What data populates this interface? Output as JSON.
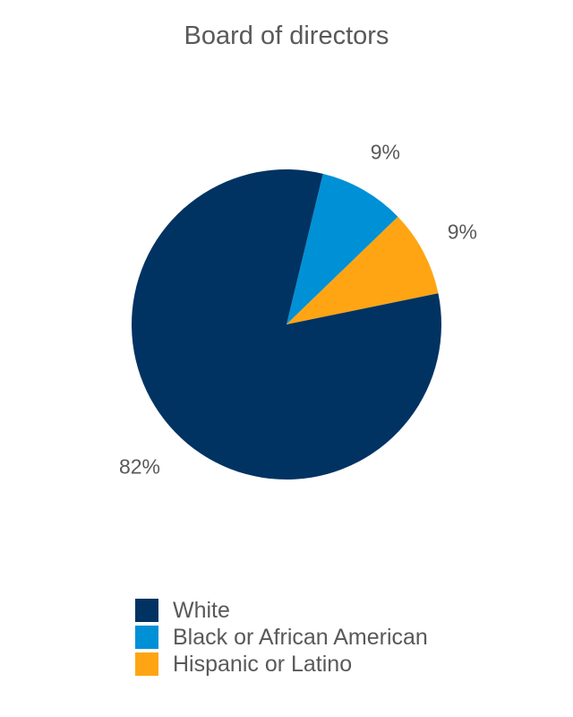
{
  "chart_data": {
    "type": "pie",
    "title": "Board of directors",
    "slices": [
      {
        "label": "Black or African American",
        "value": 9,
        "data_label": "9%",
        "color": "#0090d6"
      },
      {
        "label": "Hispanic or Latino",
        "value": 9,
        "data_label": "9%",
        "color": "#ffa514"
      },
      {
        "label": "White",
        "value": 82,
        "data_label": "82%",
        "color": "#003362"
      }
    ],
    "legend": {
      "position": "bottom",
      "items": [
        {
          "label": "White",
          "color": "#003362"
        },
        {
          "label": "Black or African American",
          "color": "#0090d6"
        },
        {
          "label": "Hispanic or Latino",
          "color": "#ffa514"
        }
      ]
    }
  }
}
